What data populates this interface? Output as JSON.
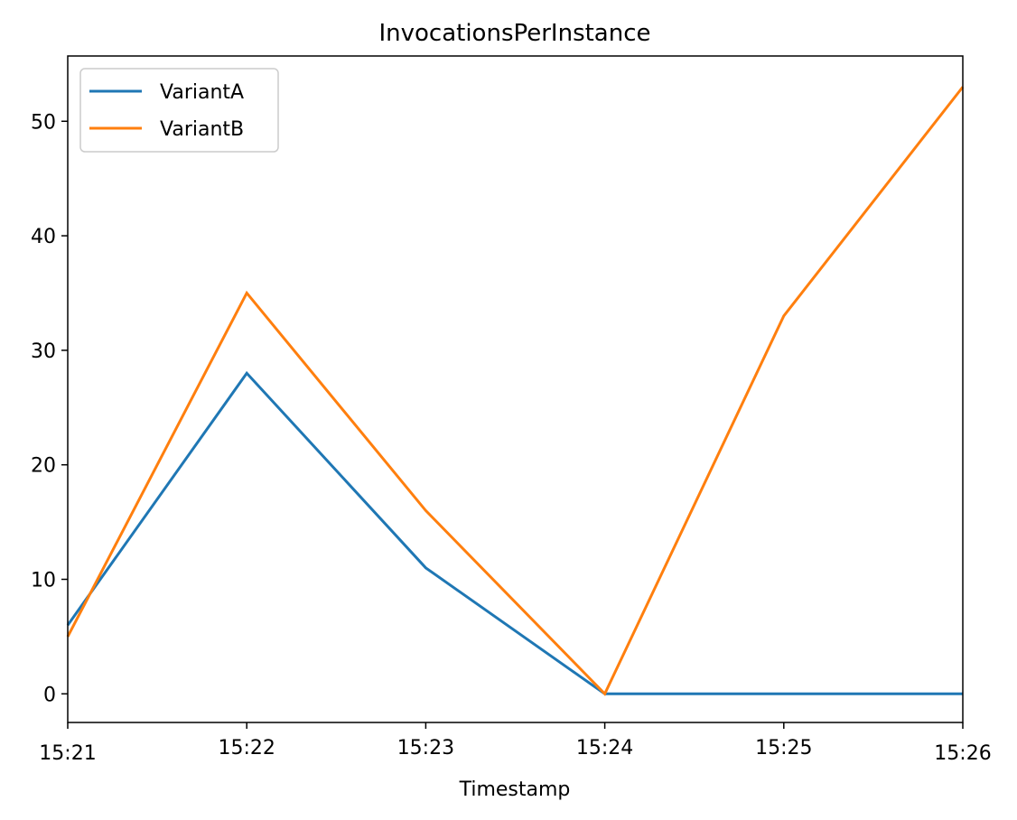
{
  "chart_data": {
    "type": "line",
    "title": "InvocationsPerInstance",
    "xlabel": "Timestamp",
    "ylabel": "",
    "categories": [
      "15:21",
      "15:22",
      "15:23",
      "15:24",
      "15:25",
      "15:26"
    ],
    "yticks": [
      0,
      10,
      20,
      30,
      40,
      50
    ],
    "ylim": [
      -2.5,
      55.7
    ],
    "grid": false,
    "legend_position": "top-left",
    "series": [
      {
        "name": "VariantA",
        "color": "#1f77b4",
        "values": [
          6,
          28,
          11,
          0,
          0,
          0
        ]
      },
      {
        "name": "VariantB",
        "color": "#ff7f0e",
        "values": [
          5,
          35,
          16,
          0,
          33,
          53
        ]
      }
    ]
  }
}
